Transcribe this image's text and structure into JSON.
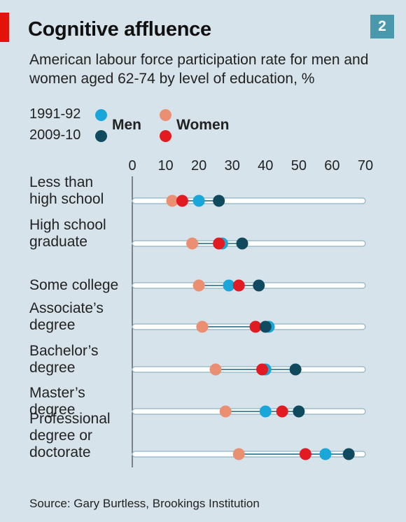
{
  "header": {
    "title": "Cognitive affluence",
    "badge": "2",
    "subtitle": "American labour force participation rate for men and women aged 62-74  by level of education, %"
  },
  "legend": {
    "period_1": "1991-92",
    "period_2": "2009-10",
    "men_label": "Men",
    "women_label": "Women"
  },
  "colors": {
    "men_1991": "#19a6d9",
    "men_2009": "#0f4a5e",
    "women_1991": "#eb8f73",
    "women_2009": "#e21b22",
    "track": "#ffffff",
    "track_border": "#8fb3c3",
    "connector": "#4d8aa0"
  },
  "chart_data": {
    "type": "dot",
    "title": "Cognitive affluence",
    "subtitle": "American labour force participation rate for men and women aged 62-74  by level of education, %",
    "xlim": [
      0,
      70
    ],
    "x_ticks": [
      "0",
      "10",
      "20",
      "30",
      "40",
      "50",
      "60",
      "70"
    ],
    "legend_position": "top-left",
    "grid": false,
    "categories": [
      [
        "Less than",
        "high school"
      ],
      [
        "High school",
        "graduate"
      ],
      [
        "Some college"
      ],
      [
        "Associate’s",
        "degree"
      ],
      [
        "Bachelor’s",
        "degree"
      ],
      [
        "Master’s",
        "degree"
      ],
      [
        "Professional",
        "degree or",
        "doctorate"
      ]
    ],
    "series": [
      {
        "name": "Women 1991-92",
        "values": [
          12,
          18,
          20,
          21,
          25,
          28,
          32
        ]
      },
      {
        "name": "Men 1991-92",
        "values": [
          20,
          27,
          29,
          41,
          40,
          40,
          58
        ]
      },
      {
        "name": "Women 2009-10",
        "values": [
          15,
          26,
          32,
          37,
          39,
          45,
          52
        ]
      },
      {
        "name": "Men 2009-10",
        "values": [
          26,
          33,
          38,
          40,
          49,
          50,
          65
        ]
      }
    ]
  },
  "footer": {
    "source": "Source: Gary Burtless, Brookings Institution"
  }
}
